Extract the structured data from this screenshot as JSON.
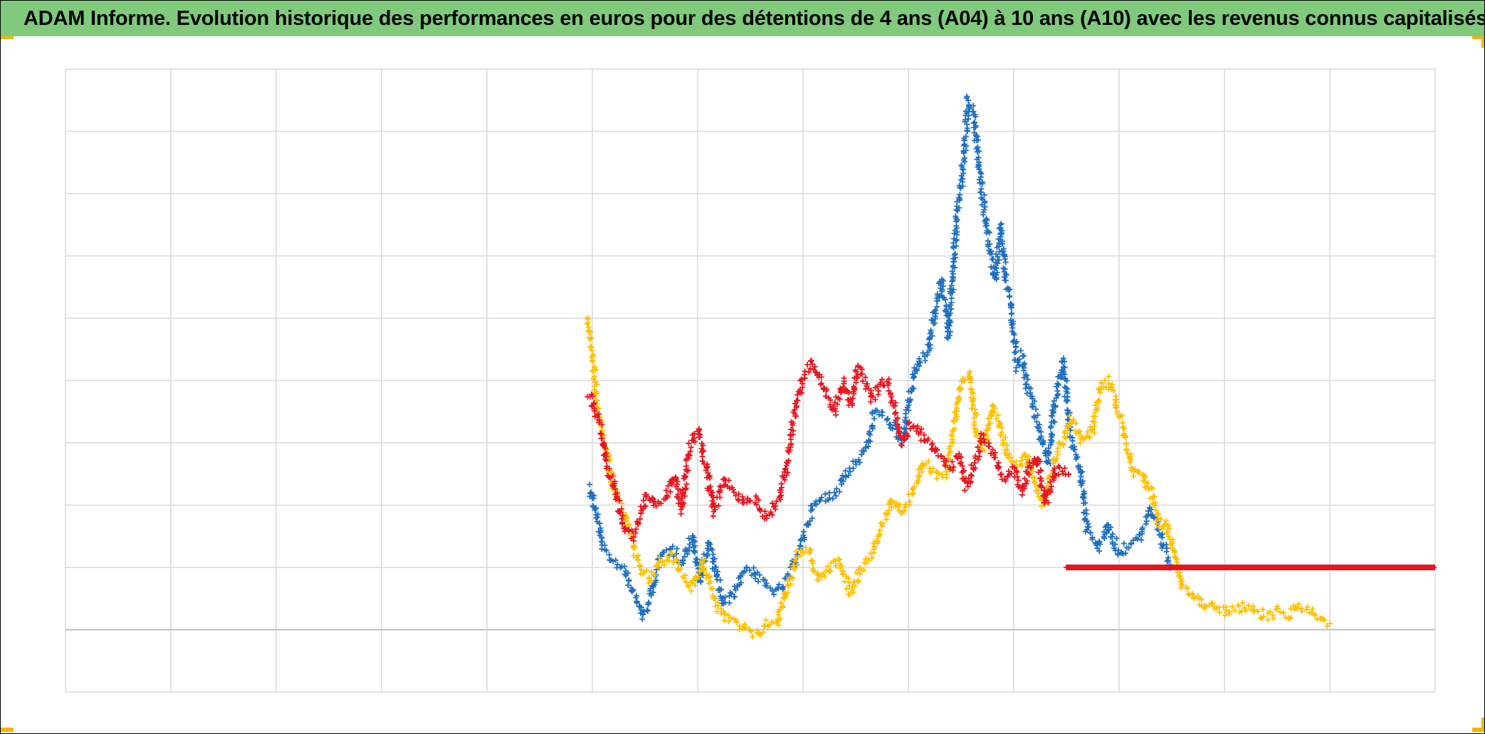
{
  "header": {
    "title": "ADAM Informe. Evolution historique des performances en euros pour des détentions de 4 ans (A04) à 10 ans (A10) avec les revenus connus capitalisés"
  },
  "colors": {
    "title_bar": "#7fcb7b",
    "series_blue": "#1f6fc0",
    "series_yellow": "#ffc000",
    "series_red": "#e8141e",
    "grid": "#d9d9d9",
    "zero_line": "#bfbfbf",
    "corner_accent": "#f5b400"
  },
  "chart_data": {
    "type": "scatter",
    "marker": "plus",
    "grid": true,
    "legend": "none",
    "xlim": [
      0,
      13
    ],
    "ylim": [
      -1,
      9
    ],
    "series": [
      {
        "color": "#1f6fc0",
        "points": [
          [
            4.97,
            2.3
          ],
          [
            5.02,
            2.0
          ],
          [
            5.1,
            1.3
          ],
          [
            5.2,
            1.1
          ],
          [
            5.3,
            1.0
          ],
          [
            5.4,
            0.6
          ],
          [
            5.48,
            0.2
          ],
          [
            5.55,
            0.5
          ],
          [
            5.65,
            1.2
          ],
          [
            5.75,
            1.3
          ],
          [
            5.85,
            1.1
          ],
          [
            5.95,
            1.5
          ],
          [
            6.02,
            0.8
          ],
          [
            6.1,
            1.4
          ],
          [
            6.18,
            0.9
          ],
          [
            6.25,
            0.4
          ],
          [
            6.35,
            0.6
          ],
          [
            6.45,
            1.0
          ],
          [
            6.55,
            0.9
          ],
          [
            6.65,
            0.7
          ],
          [
            6.75,
            0.6
          ],
          [
            6.85,
            0.8
          ],
          [
            6.95,
            1.2
          ],
          [
            7.02,
            1.6
          ],
          [
            7.1,
            2.0
          ],
          [
            7.2,
            2.1
          ],
          [
            7.3,
            2.2
          ],
          [
            7.4,
            2.5
          ],
          [
            7.5,
            2.7
          ],
          [
            7.6,
            2.9
          ],
          [
            7.68,
            3.5
          ],
          [
            7.78,
            3.4
          ],
          [
            7.88,
            3.2
          ],
          [
            7.95,
            3.0
          ],
          [
            8.02,
            3.8
          ],
          [
            8.1,
            4.3
          ],
          [
            8.18,
            4.4
          ],
          [
            8.25,
            5.1
          ],
          [
            8.32,
            5.6
          ],
          [
            8.38,
            4.7
          ],
          [
            8.45,
            6.4
          ],
          [
            8.52,
            7.5
          ],
          [
            8.57,
            8.5
          ],
          [
            8.62,
            8.3
          ],
          [
            8.67,
            7.4
          ],
          [
            8.72,
            6.8
          ],
          [
            8.78,
            6.0
          ],
          [
            8.83,
            5.6
          ],
          [
            8.87,
            6.5
          ],
          [
            8.92,
            5.7
          ],
          [
            8.97,
            5.2
          ],
          [
            9.03,
            4.2
          ],
          [
            9.08,
            4.4
          ],
          [
            9.13,
            3.9
          ],
          [
            9.2,
            3.5
          ],
          [
            9.27,
            3.0
          ],
          [
            9.33,
            2.7
          ],
          [
            9.4,
            3.8
          ],
          [
            9.47,
            4.3
          ],
          [
            9.55,
            3.0
          ],
          [
            9.63,
            2.6
          ],
          [
            9.7,
            1.6
          ],
          [
            9.8,
            1.3
          ],
          [
            9.9,
            1.7
          ],
          [
            10.0,
            1.2
          ],
          [
            10.1,
            1.4
          ],
          [
            10.2,
            1.5
          ],
          [
            10.3,
            1.9
          ],
          [
            10.38,
            1.6
          ],
          [
            10.45,
            1.2
          ],
          [
            10.5,
            1.0
          ]
        ]
      },
      {
        "color": "#ffc000",
        "points": [
          [
            4.96,
            5.0
          ],
          [
            5.0,
            4.5
          ],
          [
            5.05,
            3.5
          ],
          [
            5.12,
            3.0
          ],
          [
            5.2,
            2.3
          ],
          [
            5.28,
            1.9
          ],
          [
            5.35,
            1.6
          ],
          [
            5.45,
            1.0
          ],
          [
            5.55,
            0.8
          ],
          [
            5.65,
            1.1
          ],
          [
            5.75,
            1.2
          ],
          [
            5.85,
            0.9
          ],
          [
            5.95,
            0.7
          ],
          [
            6.05,
            1.1
          ],
          [
            6.15,
            0.5
          ],
          [
            6.25,
            0.2
          ],
          [
            6.35,
            0.1
          ],
          [
            6.45,
            0.0
          ],
          [
            6.55,
            -0.1
          ],
          [
            6.65,
            0.1
          ],
          [
            6.75,
            0.1
          ],
          [
            6.85,
            0.7
          ],
          [
            6.95,
            1.2
          ],
          [
            7.05,
            1.3
          ],
          [
            7.15,
            0.8
          ],
          [
            7.25,
            1.0
          ],
          [
            7.35,
            1.1
          ],
          [
            7.45,
            0.6
          ],
          [
            7.55,
            1.0
          ],
          [
            7.65,
            1.2
          ],
          [
            7.75,
            1.7
          ],
          [
            7.85,
            2.1
          ],
          [
            7.95,
            1.9
          ],
          [
            8.05,
            2.2
          ],
          [
            8.15,
            2.7
          ],
          [
            8.25,
            2.5
          ],
          [
            8.35,
            2.5
          ],
          [
            8.42,
            3.1
          ],
          [
            8.5,
            4.0
          ],
          [
            8.58,
            4.1
          ],
          [
            8.65,
            3.2
          ],
          [
            8.72,
            2.9
          ],
          [
            8.8,
            3.6
          ],
          [
            8.88,
            3.2
          ],
          [
            8.95,
            2.8
          ],
          [
            9.05,
            2.6
          ],
          [
            9.12,
            2.8
          ],
          [
            9.2,
            2.4
          ],
          [
            9.28,
            2.0
          ],
          [
            9.35,
            2.5
          ],
          [
            9.45,
            3.0
          ],
          [
            9.55,
            3.4
          ],
          [
            9.65,
            3.0
          ],
          [
            9.75,
            3.2
          ],
          [
            9.82,
            3.9
          ],
          [
            9.9,
            4.0
          ],
          [
            9.95,
            3.8
          ],
          [
            10.05,
            3.1
          ],
          [
            10.15,
            2.5
          ],
          [
            10.22,
            2.5
          ],
          [
            10.3,
            2.2
          ],
          [
            10.38,
            1.7
          ],
          [
            10.45,
            1.7
          ],
          [
            10.52,
            1.2
          ],
          [
            10.6,
            0.7
          ],
          [
            10.7,
            0.6
          ],
          [
            10.8,
            0.4
          ],
          [
            10.9,
            0.4
          ],
          [
            11.0,
            0.3
          ],
          [
            11.1,
            0.3
          ],
          [
            11.2,
            0.4
          ],
          [
            11.3,
            0.3
          ],
          [
            11.4,
            0.2
          ],
          [
            11.5,
            0.3
          ],
          [
            11.6,
            0.2
          ],
          [
            11.7,
            0.4
          ],
          [
            11.8,
            0.3
          ],
          [
            11.9,
            0.2
          ],
          [
            12.0,
            0.1
          ]
        ]
      },
      {
        "color": "#e8141e",
        "points": [
          [
            4.97,
            3.8
          ],
          [
            5.02,
            3.6
          ],
          [
            5.08,
            3.2
          ],
          [
            5.15,
            2.6
          ],
          [
            5.22,
            2.2
          ],
          [
            5.3,
            1.6
          ],
          [
            5.38,
            1.5
          ],
          [
            5.45,
            1.8
          ],
          [
            5.52,
            2.2
          ],
          [
            5.6,
            2.0
          ],
          [
            5.7,
            2.1
          ],
          [
            5.78,
            2.5
          ],
          [
            5.85,
            1.9
          ],
          [
            5.92,
            2.9
          ],
          [
            6.0,
            3.2
          ],
          [
            6.08,
            2.6
          ],
          [
            6.15,
            1.9
          ],
          [
            6.25,
            2.4
          ],
          [
            6.35,
            2.2
          ],
          [
            6.45,
            2.0
          ],
          [
            6.55,
            2.1
          ],
          [
            6.65,
            1.8
          ],
          [
            6.75,
            2.0
          ],
          [
            6.85,
            2.6
          ],
          [
            6.92,
            3.5
          ],
          [
            7.0,
            4.0
          ],
          [
            7.08,
            4.3
          ],
          [
            7.15,
            4.1
          ],
          [
            7.22,
            3.8
          ],
          [
            7.3,
            3.5
          ],
          [
            7.38,
            4.0
          ],
          [
            7.45,
            3.6
          ],
          [
            7.52,
            4.2
          ],
          [
            7.58,
            4.0
          ],
          [
            7.65,
            3.7
          ],
          [
            7.72,
            3.9
          ],
          [
            7.8,
            4.0
          ],
          [
            7.88,
            3.5
          ],
          [
            7.95,
            3.0
          ],
          [
            8.02,
            3.3
          ],
          [
            8.1,
            3.2
          ],
          [
            8.18,
            3.0
          ],
          [
            8.25,
            2.9
          ],
          [
            8.32,
            2.7
          ],
          [
            8.4,
            2.6
          ],
          [
            8.48,
            2.8
          ],
          [
            8.55,
            2.3
          ],
          [
            8.62,
            2.6
          ],
          [
            8.7,
            3.1
          ],
          [
            8.78,
            2.9
          ],
          [
            8.85,
            2.6
          ],
          [
            8.92,
            2.4
          ],
          [
            9.0,
            2.6
          ],
          [
            9.08,
            2.2
          ],
          [
            9.15,
            2.6
          ],
          [
            9.22,
            2.8
          ],
          [
            9.3,
            2.0
          ],
          [
            9.38,
            2.5
          ],
          [
            9.45,
            2.6
          ],
          [
            9.52,
            2.5
          ]
        ],
        "flat_line": {
          "x": [
            9.5,
            13.0
          ],
          "y": 1.0
        }
      }
    ]
  }
}
